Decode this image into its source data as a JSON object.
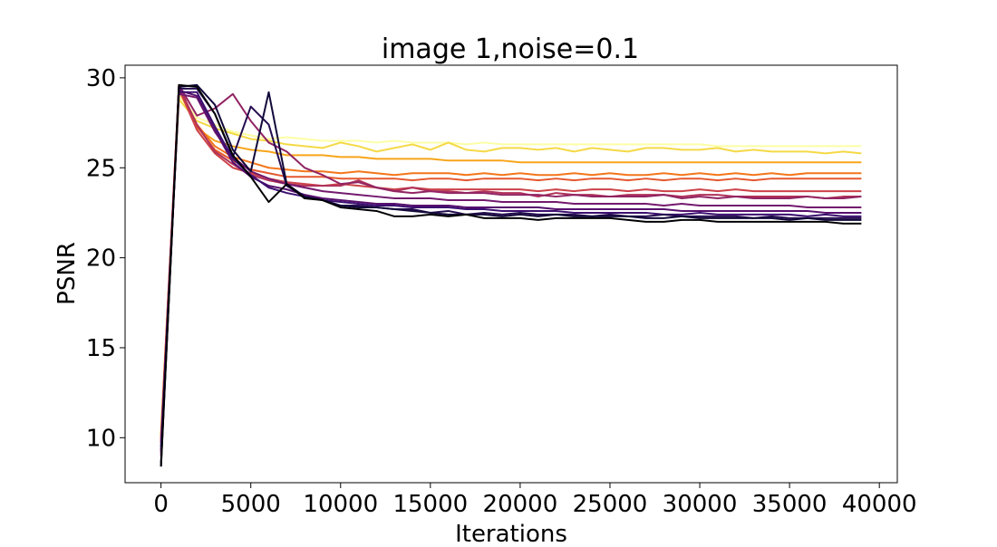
{
  "chart_data": {
    "type": "line",
    "title": "image 1,noise=0.1",
    "xlabel": "Iterations",
    "ylabel": "PSNR",
    "xlim": [
      -2000,
      41000
    ],
    "ylim": [
      7.5,
      30.7
    ],
    "xticks": [
      0,
      5000,
      10000,
      15000,
      20000,
      25000,
      30000,
      35000,
      40000
    ],
    "yticks": [
      10,
      15,
      20,
      25,
      30
    ],
    "grid": false,
    "legend": "none",
    "x": [
      0,
      1000,
      2000,
      3000,
      4000,
      5000,
      6000,
      7000,
      8000,
      9000,
      10000,
      11000,
      12000,
      13000,
      14000,
      15000,
      16000,
      17000,
      18000,
      19000,
      20000,
      21000,
      22000,
      23000,
      24000,
      25000,
      26000,
      27000,
      28000,
      29000,
      30000,
      31000,
      32000,
      33000,
      34000,
      35000,
      36000,
      37000,
      38000,
      39000
    ],
    "series": [
      {
        "color": "#fcffa4",
        "values": [
          10.5,
          29.0,
          27.8,
          27.4,
          27.0,
          26.8,
          26.6,
          26.7,
          26.6,
          26.5,
          26.5,
          26.5,
          26.4,
          26.5,
          26.4,
          26.4,
          26.4,
          26.3,
          26.4,
          26.3,
          26.3,
          26.3,
          26.3,
          26.3,
          26.3,
          26.3,
          26.3,
          26.3,
          26.3,
          26.3,
          26.3,
          26.2,
          26.2,
          26.2,
          26.2,
          26.2,
          26.2,
          26.2,
          26.2,
          26.2
        ]
      },
      {
        "color": "#f5d946",
        "values": [
          10.2,
          28.8,
          27.6,
          27.2,
          26.9,
          26.6,
          26.5,
          26.3,
          26.2,
          26.1,
          26.4,
          26.2,
          25.9,
          26.1,
          26.3,
          26.0,
          26.4,
          26.0,
          25.9,
          26.1,
          26.1,
          26.0,
          26.1,
          25.9,
          26.1,
          26.0,
          25.9,
          26.1,
          26.1,
          26.0,
          26.0,
          26.1,
          25.9,
          26.0,
          25.9,
          25.9,
          25.9,
          25.8,
          25.9,
          25.8
        ]
      },
      {
        "color": "#f8a51a",
        "values": [
          10.0,
          29.3,
          27.2,
          26.5,
          26.2,
          26.0,
          25.9,
          25.7,
          25.7,
          25.7,
          25.6,
          25.6,
          25.5,
          25.5,
          25.5,
          25.5,
          25.4,
          25.4,
          25.4,
          25.4,
          25.3,
          25.3,
          25.3,
          25.3,
          25.3,
          25.3,
          25.3,
          25.3,
          25.3,
          25.3,
          25.3,
          25.3,
          25.3,
          25.3,
          25.3,
          25.3,
          25.3,
          25.3,
          25.3,
          25.3
        ]
      },
      {
        "color": "#f3761b",
        "values": [
          10.1,
          29.5,
          27.4,
          26.2,
          25.6,
          25.3,
          25.0,
          24.9,
          24.8,
          24.8,
          24.7,
          24.8,
          24.7,
          24.6,
          24.7,
          24.7,
          24.7,
          24.6,
          24.7,
          24.6,
          24.7,
          24.6,
          24.6,
          24.7,
          24.6,
          24.7,
          24.6,
          24.6,
          24.7,
          24.6,
          24.7,
          24.6,
          24.7,
          24.6,
          24.7,
          24.6,
          24.7,
          24.7,
          24.7,
          24.7
        ]
      },
      {
        "color": "#e4582e",
        "values": [
          9.9,
          29.6,
          27.3,
          26.0,
          25.4,
          24.9,
          24.7,
          24.5,
          24.5,
          24.5,
          24.4,
          24.4,
          24.4,
          24.4,
          24.3,
          24.4,
          24.4,
          24.3,
          24.4,
          24.4,
          24.4,
          24.3,
          24.4,
          24.3,
          24.4,
          24.4,
          24.3,
          24.4,
          24.3,
          24.4,
          24.4,
          24.3,
          24.4,
          24.3,
          24.4,
          24.4,
          24.4,
          24.4,
          24.4,
          24.4
        ]
      },
      {
        "color": "#cc4248",
        "values": [
          9.8,
          29.4,
          27.1,
          25.8,
          25.0,
          24.7,
          24.4,
          24.2,
          24.1,
          24.0,
          24.1,
          24.0,
          23.9,
          23.8,
          23.9,
          23.8,
          23.8,
          23.8,
          23.8,
          23.8,
          23.8,
          23.7,
          23.8,
          23.7,
          23.8,
          23.8,
          23.7,
          23.8,
          23.7,
          23.7,
          23.8,
          23.7,
          23.8,
          23.7,
          23.7,
          23.7,
          23.7,
          23.7,
          23.7,
          23.7
        ]
      },
      {
        "color": "#b0325a",
        "values": [
          9.7,
          29.5,
          27.4,
          25.9,
          25.2,
          24.6,
          24.3,
          24.1,
          24.0,
          24.0,
          24.0,
          24.3,
          23.9,
          23.7,
          23.9,
          23.7,
          23.7,
          23.6,
          23.7,
          23.6,
          23.6,
          23.4,
          23.6,
          23.5,
          23.5,
          23.4,
          23.5,
          23.5,
          23.5,
          23.4,
          23.5,
          23.5,
          23.4,
          23.4,
          23.4,
          23.4,
          23.4,
          23.3,
          23.4,
          23.4
        ]
      },
      {
        "color": "#912463",
        "values": [
          9.0,
          29.6,
          27.9,
          28.3,
          29.1,
          27.6,
          26.4,
          25.9,
          25.0,
          24.6,
          24.1,
          24.2,
          23.9,
          23.7,
          23.6,
          23.7,
          23.6,
          23.6,
          23.6,
          23.5,
          23.5,
          23.5,
          23.4,
          23.5,
          23.4,
          23.4,
          23.4,
          23.4,
          23.5,
          23.3,
          23.4,
          23.3,
          23.4,
          23.3,
          23.3,
          23.3,
          23.4,
          23.3,
          23.3,
          23.4
        ]
      },
      {
        "color": "#731a6e",
        "values": [
          9.2,
          29.1,
          28.9,
          27.0,
          25.6,
          24.8,
          24.4,
          24.1,
          23.9,
          23.7,
          23.6,
          23.5,
          23.4,
          23.3,
          23.3,
          23.3,
          23.2,
          23.2,
          23.2,
          23.1,
          23.1,
          23.1,
          23.1,
          23.0,
          23.0,
          23.0,
          23.0,
          23.0,
          22.9,
          23.0,
          22.9,
          22.9,
          22.9,
          22.9,
          22.9,
          22.9,
          22.8,
          22.8,
          22.8,
          22.8
        ]
      },
      {
        "color": "#56106e",
        "values": [
          9.3,
          29.3,
          29.0,
          27.1,
          25.3,
          24.5,
          24.0,
          23.8,
          23.5,
          23.3,
          23.2,
          23.1,
          23.0,
          23.0,
          22.9,
          22.9,
          22.9,
          22.8,
          22.8,
          22.8,
          22.8,
          22.8,
          22.7,
          22.7,
          22.7,
          22.7,
          22.7,
          22.7,
          22.7,
          22.6,
          22.6,
          22.6,
          22.6,
          22.6,
          22.6,
          22.6,
          22.6,
          22.5,
          22.5,
          22.5
        ]
      },
      {
        "color": "#3b0f70",
        "values": [
          9.5,
          29.2,
          29.2,
          27.3,
          25.5,
          24.6,
          23.9,
          23.6,
          23.4,
          23.2,
          23.1,
          23.0,
          22.9,
          22.9,
          22.8,
          22.8,
          22.8,
          22.7,
          22.7,
          22.6,
          22.6,
          22.6,
          22.6,
          22.5,
          22.5,
          22.5,
          22.5,
          22.5,
          22.4,
          22.4,
          22.5,
          22.4,
          22.4,
          22.4,
          22.4,
          22.4,
          22.3,
          22.4,
          22.3,
          22.3
        ]
      },
      {
        "color": "#240c4f",
        "values": [
          8.6,
          29.4,
          29.4,
          28.0,
          25.6,
          28.4,
          27.4,
          24.0,
          23.4,
          23.2,
          22.9,
          22.9,
          22.8,
          22.7,
          22.7,
          22.5,
          22.6,
          22.4,
          22.5,
          22.4,
          22.5,
          22.4,
          22.4,
          22.4,
          22.3,
          22.4,
          22.3,
          22.3,
          22.4,
          22.3,
          22.3,
          22.3,
          22.3,
          22.2,
          22.3,
          22.2,
          22.2,
          22.2,
          22.2,
          22.2
        ]
      },
      {
        "color": "#12093a",
        "values": [
          8.4,
          29.5,
          29.6,
          28.5,
          26.0,
          24.8,
          29.2,
          24.1,
          23.4,
          23.2,
          22.9,
          22.8,
          22.8,
          22.7,
          22.6,
          22.5,
          22.4,
          22.4,
          22.4,
          22.3,
          22.4,
          22.3,
          22.4,
          22.3,
          22.3,
          22.3,
          22.3,
          22.2,
          22.2,
          22.3,
          22.2,
          22.2,
          22.2,
          22.2,
          22.2,
          22.1,
          22.2,
          22.1,
          22.1,
          22.1
        ]
      },
      {
        "color": "#000004",
        "values": [
          8.4,
          29.6,
          29.5,
          28.0,
          25.7,
          24.5,
          23.1,
          24.1,
          23.3,
          23.2,
          22.8,
          22.7,
          22.6,
          22.3,
          22.3,
          22.4,
          22.3,
          22.4,
          22.2,
          22.2,
          22.2,
          22.1,
          22.2,
          22.2,
          22.2,
          22.2,
          22.1,
          22.0,
          22.0,
          22.1,
          22.1,
          22.0,
          22.0,
          22.0,
          22.0,
          22.0,
          22.0,
          22.0,
          21.9,
          21.9
        ]
      }
    ]
  }
}
